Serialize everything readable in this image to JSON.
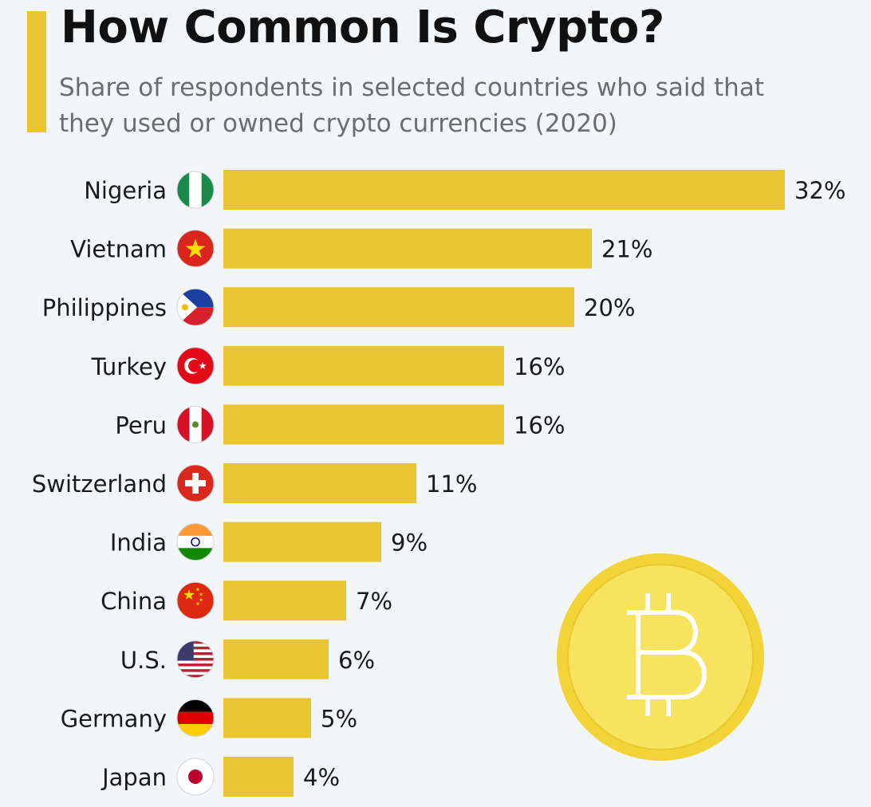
{
  "header": {
    "title": "How Common Is Crypto?",
    "subtitle": "Share of respondents in selected countries who said that they used or owned crypto currencies (2020)"
  },
  "colors": {
    "bar": "#e8c531",
    "accent": "#e8c531",
    "background": "#f3f6f8",
    "coin_outer": "#f2d338",
    "coin_inner": "#f7e35e"
  },
  "decoration": {
    "coin_icon": "bitcoin-icon"
  },
  "chart_data": {
    "type": "bar",
    "orientation": "horizontal",
    "title": "How Common Is Crypto?",
    "subtitle": "Share of respondents in selected countries who said that they used or owned crypto currencies (2020)",
    "categories": [
      "Nigeria",
      "Vietnam",
      "Philippines",
      "Turkey",
      "Peru",
      "Switzerland",
      "India",
      "China",
      "U.S.",
      "Germany",
      "Japan"
    ],
    "values": [
      32,
      21,
      20,
      16,
      16,
      11,
      9,
      7,
      6,
      5,
      4
    ],
    "value_labels": [
      "32%",
      "21%",
      "20%",
      "16%",
      "16%",
      "11%",
      "9%",
      "7%",
      "6%",
      "5%",
      "4%"
    ],
    "flags": [
      "nigeria-flag-icon",
      "vietnam-flag-icon",
      "philippines-flag-icon",
      "turkey-flag-icon",
      "peru-flag-icon",
      "switzerland-flag-icon",
      "india-flag-icon",
      "china-flag-icon",
      "us-flag-icon",
      "germany-flag-icon",
      "japan-flag-icon"
    ],
    "unit": "%",
    "xlim": [
      0,
      32
    ],
    "grid": false,
    "legend": "none"
  }
}
